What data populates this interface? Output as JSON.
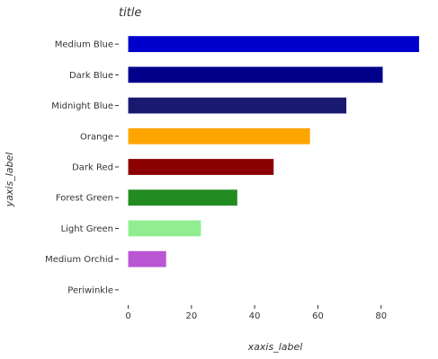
{
  "chart_data": {
    "type": "bar",
    "orientation": "horizontal",
    "title": "title",
    "xlabel": "xaxis_label",
    "ylabel": "yaxis_label",
    "categories": [
      "Periwinkle",
      "Medium Orchid",
      "Light Green",
      "Forest Green",
      "Dark Red",
      "Orange",
      "Midnight Blue",
      "Dark Blue",
      "Medium Blue"
    ],
    "values": [
      0,
      12,
      23,
      34.5,
      46,
      57.5,
      69,
      80.5,
      92
    ],
    "colors": [
      "#ccccff",
      "#ba55d3",
      "#90ee90",
      "#228b22",
      "#8b0000",
      "#ffa500",
      "#191970",
      "#00008b",
      "#0000cd"
    ],
    "xlim": [
      -3,
      96
    ],
    "xticks": [
      0,
      20,
      40,
      60,
      80
    ],
    "xtick_labels": [
      "0",
      "20",
      "40",
      "60",
      "80"
    ],
    "grid": false,
    "legend": "none"
  }
}
